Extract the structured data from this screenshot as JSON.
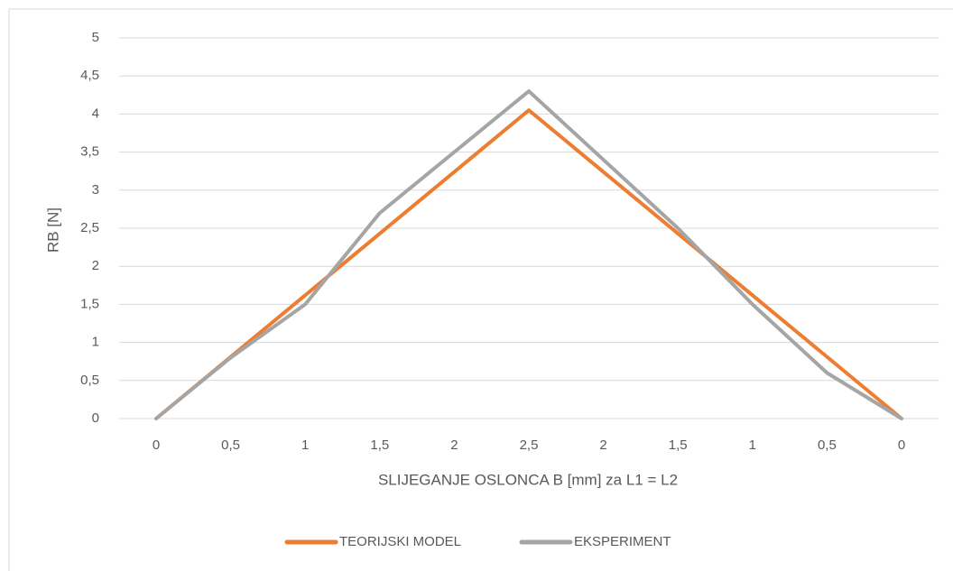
{
  "chart_data": {
    "type": "line",
    "x_label": "SLIJEGANJE OSLONCA B [mm] za L1 = L2",
    "y_label": "RB [N]",
    "categories": [
      "0",
      "0,5",
      "1",
      "1,5",
      "2",
      "2,5",
      "2",
      "1,5",
      "1",
      "0,5",
      "0"
    ],
    "series": [
      {
        "name": "TEORIJSKI MODEL",
        "color": "#ed7d31",
        "values": [
          0,
          0.81,
          1.62,
          2.43,
          3.24,
          4.05,
          3.24,
          2.43,
          1.62,
          0.81,
          0
        ]
      },
      {
        "name": "EKSPERIMENT",
        "color": "#a5a5a5",
        "values": [
          0,
          0.8,
          1.5,
          2.7,
          3.5,
          4.3,
          3.4,
          2.5,
          1.5,
          0.6,
          0
        ]
      }
    ],
    "ylim": [
      0,
      5
    ],
    "yticks": [
      0,
      {
        "value": 0.5,
        "label": "0,5"
      },
      1,
      {
        "value": 1.5,
        "label": "1,5"
      },
      2,
      {
        "value": 2.5,
        "label": "2,5"
      },
      3,
      {
        "value": 3.5,
        "label": "3,5"
      },
      4,
      {
        "value": 4.5,
        "label": "4,5"
      },
      5
    ],
    "grid": true,
    "legend": "bottom"
  }
}
